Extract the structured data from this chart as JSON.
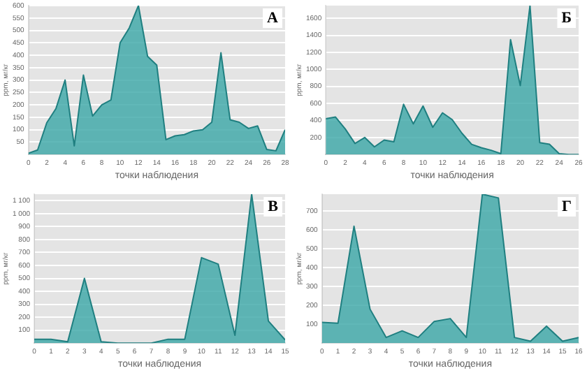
{
  "chart_data": [
    {
      "type": "area",
      "annotations": [
        "А"
      ],
      "xlabel": "точки наблюдения",
      "ylabel": "ppm, мг/кг",
      "x": [
        0,
        1,
        2,
        3,
        4,
        5,
        6,
        7,
        8,
        9,
        10,
        11,
        12,
        13,
        14,
        15,
        16,
        17,
        18,
        19,
        20,
        21,
        22,
        23,
        24,
        25,
        26,
        27,
        28
      ],
      "series": [
        {
          "color": "#3aa6a6",
          "values": [
            5,
            18,
            128,
            185,
            300,
            35,
            320,
            155,
            200,
            220,
            450,
            510,
            600,
            395,
            360,
            60,
            75,
            80,
            95,
            100,
            130,
            410,
            140,
            130,
            105,
            115,
            20,
            15,
            100
          ]
        }
      ],
      "xlim": [
        0,
        28
      ],
      "xticks": [
        0,
        2,
        4,
        6,
        8,
        10,
        12,
        14,
        16,
        18,
        20,
        22,
        24,
        26,
        28
      ],
      "ylim": [
        0,
        600
      ],
      "yticks": [
        50,
        100,
        150,
        200,
        250,
        300,
        350,
        400,
        450,
        500,
        550,
        600
      ],
      "grid": "y",
      "legend": false
    },
    {
      "type": "area",
      "annotations": [
        "Б"
      ],
      "xlabel": "точки наблюдения",
      "ylabel": "ppm, мг/кг",
      "x": [
        0,
        1,
        2,
        3,
        4,
        5,
        6,
        7,
        8,
        9,
        10,
        11,
        12,
        13,
        14,
        15,
        16,
        17,
        18,
        19,
        20,
        21,
        22,
        23,
        24,
        25,
        26
      ],
      "series": [
        {
          "color": "#3aa6a6",
          "values": [
            420,
            440,
            300,
            130,
            200,
            90,
            170,
            150,
            590,
            360,
            570,
            320,
            490,
            410,
            250,
            120,
            80,
            50,
            10,
            1350,
            810,
            1750,
            140,
            120,
            10,
            0,
            0
          ]
        }
      ],
      "xlim": [
        0,
        26
      ],
      "xticks": [
        0,
        2,
        4,
        6,
        8,
        10,
        12,
        14,
        16,
        18,
        20,
        22,
        24,
        26
      ],
      "ylim": [
        0,
        1750
      ],
      "yticks": [
        200,
        400,
        600,
        800,
        1000,
        1200,
        1400,
        1600
      ],
      "grid": "y",
      "legend": false
    },
    {
      "type": "area",
      "annotations": [
        "В"
      ],
      "xlabel": "точки наблюдения",
      "ylabel": "ppm, мг/кг",
      "x": [
        0,
        1,
        2,
        3,
        4,
        5,
        6,
        7,
        8,
        9,
        10,
        11,
        12,
        13,
        14,
        15
      ],
      "series": [
        {
          "color": "#3aa6a6",
          "values": [
            30,
            30,
            10,
            500,
            10,
            0,
            0,
            0,
            30,
            30,
            660,
            610,
            60,
            1150,
            170,
            25
          ]
        }
      ],
      "xlim": [
        0,
        15
      ],
      "xticks": [
        0,
        1,
        2,
        3,
        4,
        5,
        6,
        7,
        8,
        9,
        10,
        11,
        12,
        13,
        14,
        15
      ],
      "ylim": [
        0,
        1150
      ],
      "yticks": [
        {
          "value": 100,
          "label": "100"
        },
        {
          "value": 200,
          "label": "200"
        },
        {
          "value": 300,
          "label": "300"
        },
        {
          "value": 400,
          "label": "400"
        },
        {
          "value": 500,
          "label": "500"
        },
        {
          "value": 600,
          "label": "600"
        },
        {
          "value": 700,
          "label": "700"
        },
        {
          "value": 800,
          "label": "800"
        },
        {
          "value": 900,
          "label": "900"
        },
        {
          "value": 1000,
          "label": "1 000"
        },
        {
          "value": 1100,
          "label": "1 100"
        }
      ],
      "grid": "y",
      "legend": false
    },
    {
      "type": "area",
      "annotations": [
        "Г"
      ],
      "xlabel": "точки наблюдения",
      "ylabel": "ppm, мг/кг",
      "x": [
        0,
        1,
        2,
        3,
        4,
        5,
        6,
        7,
        8,
        9,
        10,
        11,
        12,
        13,
        14,
        15,
        16
      ],
      "series": [
        {
          "color": "#3aa6a6",
          "values": [
            110,
            105,
            620,
            180,
            30,
            65,
            30,
            115,
            130,
            30,
            790,
            770,
            30,
            10,
            90,
            10,
            30
          ]
        }
      ],
      "xlim": [
        0,
        16
      ],
      "xticks": [
        0,
        1,
        2,
        3,
        4,
        5,
        6,
        7,
        8,
        9,
        10,
        11,
        12,
        13,
        14,
        15,
        16
      ],
      "ylim": [
        0,
        790
      ],
      "yticks": [
        100,
        200,
        300,
        400,
        500,
        600,
        700
      ],
      "grid": "y",
      "legend": false
    }
  ]
}
